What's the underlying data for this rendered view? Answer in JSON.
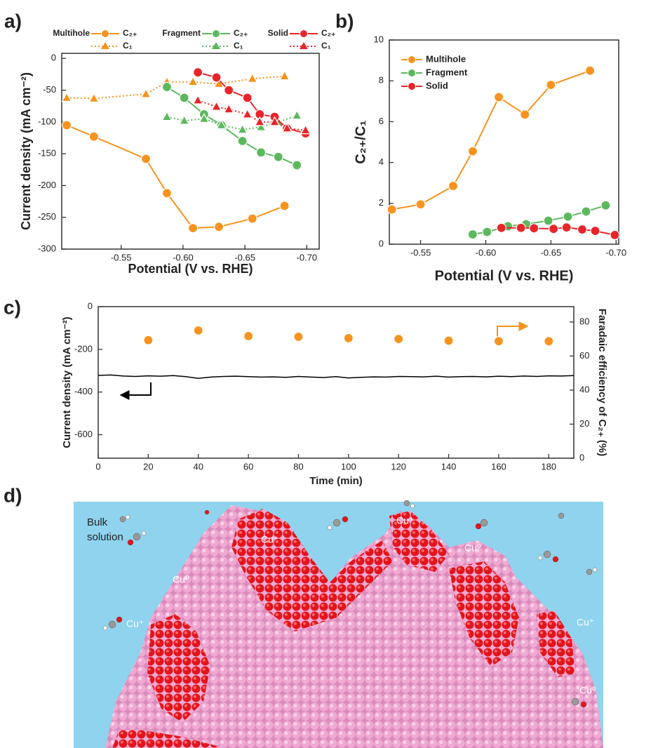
{
  "chart_data": [
    {
      "type": "line",
      "panel_label": "a)",
      "xlabel": "Potential (V vs. RHE)",
      "ylabel": "Current density (mA cm⁻²)",
      "xlim": [
        -0.502,
        -0.71
      ],
      "xticks": [
        -0.55,
        {
          "value": -0.6,
          "label": "-0.60"
        },
        -0.65,
        {
          "value": -0.7,
          "label": "-0.70"
        }
      ],
      "ylim": [
        -300,
        8
      ],
      "yticks": [
        0,
        -50,
        -100,
        -150,
        -200,
        -250,
        -300
      ],
      "groups": [
        {
          "name": "Multihole",
          "color": "#f7931e",
          "x": [
            -0.506,
            -0.528,
            -0.57,
            -0.587,
            -0.608,
            -0.629,
            -0.656,
            -0.682
          ],
          "series": [
            {
              "name": "C₂₊",
              "marker": "circle",
              "values": [
                -105,
                -123,
                -158,
                -212,
                -267,
                -265,
                -252,
                -232
              ]
            },
            {
              "name": "C₁",
              "marker": "triangle",
              "dashed": true,
              "values": [
                -62,
                -63,
                -56,
                -37,
                -37,
                -40,
                -32,
                -28
              ]
            }
          ]
        },
        {
          "name": "Fragment",
          "color": "#5cb85c",
          "x": [
            -0.587,
            -0.601,
            -0.617,
            -0.631,
            -0.648,
            -0.663,
            -0.677,
            -0.692
          ],
          "series": [
            {
              "name": "C₂₊",
              "marker": "circle",
              "values": [
                -45,
                -62,
                -88,
                -105,
                -130,
                -148,
                -155,
                -168
              ]
            },
            {
              "name": "C₁",
              "marker": "triangle",
              "dashed": true,
              "values": [
                -92,
                -98,
                -95,
                -105,
                -112,
                -108,
                -100,
                -90
              ]
            }
          ]
        },
        {
          "name": "Solid",
          "color": "#e8262a",
          "x": [
            -0.612,
            -0.627,
            -0.637,
            -0.652,
            -0.662,
            -0.674,
            -0.684,
            -0.699
          ],
          "series": [
            {
              "name": "C₂₊",
              "marker": "circle",
              "values": [
                -22,
                -30,
                -50,
                -62,
                -88,
                -92,
                -110,
                -118
              ]
            },
            {
              "name": "C₁",
              "marker": "triangle",
              "dashed": true,
              "values": [
                -66,
                -76,
                -80,
                -88,
                -100,
                -100,
                -110,
                -113
              ]
            }
          ]
        }
      ]
    },
    {
      "type": "line",
      "panel_label": "b)",
      "xlabel": "Potential (V vs. RHE)",
      "ylabel": "C₂₊/C₁",
      "xlim": [
        -0.526,
        -0.702
      ],
      "xticks": [
        -0.55,
        {
          "value": -0.6,
          "label": "-0.60"
        },
        -0.65,
        {
          "value": -0.7,
          "label": "-0.70"
        }
      ],
      "ylim": [
        0,
        10
      ],
      "yticks": [
        0,
        2,
        4,
        6,
        8,
        10
      ],
      "series": [
        {
          "name": "Multihole",
          "color": "#f7931e",
          "marker": "circle",
          "x": [
            -0.528,
            -0.55,
            -0.575,
            -0.59,
            -0.61,
            -0.63,
            -0.65,
            -0.68
          ],
          "values": [
            1.7,
            1.95,
            2.85,
            4.55,
            7.2,
            6.35,
            7.8,
            8.5
          ]
        },
        {
          "name": "Fragment",
          "color": "#5cb85c",
          "marker": "circle",
          "x": [
            -0.59,
            -0.601,
            -0.617,
            -0.631,
            -0.648,
            -0.663,
            -0.677,
            -0.692
          ],
          "values": [
            0.48,
            0.6,
            0.88,
            0.98,
            1.15,
            1.35,
            1.6,
            1.9
          ]
        },
        {
          "name": "Solid",
          "color": "#e8262a",
          "marker": "circle",
          "x": [
            -0.612,
            -0.627,
            -0.637,
            -0.652,
            -0.662,
            -0.674,
            -0.684,
            -0.699
          ],
          "values": [
            0.8,
            0.8,
            0.78,
            0.75,
            0.82,
            0.72,
            0.65,
            0.45
          ]
        }
      ]
    },
    {
      "type": "line",
      "panel_label": "c)",
      "xlabel": "Time (min)",
      "ylabel": "Current density (mA cm⁻²)",
      "y2label": "Faradaic efficiency of C₂₊ (%)",
      "xlim": [
        0,
        190
      ],
      "xticks": [
        0,
        20,
        40,
        60,
        80,
        100,
        120,
        140,
        160,
        180
      ],
      "ylim": [
        -710,
        0
      ],
      "yticks": [
        0,
        -200,
        -400,
        -600
      ],
      "y2lim": [
        0,
        89
      ],
      "y2ticks": [
        0,
        20,
        40,
        60,
        80
      ],
      "series": [
        {
          "color": "#000000",
          "x": [
            0,
            5,
            10,
            15,
            20,
            25,
            30,
            35,
            40,
            45,
            50,
            55,
            60,
            65,
            70,
            75,
            80,
            85,
            90,
            95,
            100,
            105,
            110,
            115,
            120,
            125,
            130,
            135,
            140,
            145,
            150,
            155,
            160,
            165,
            170,
            175,
            180,
            185,
            190
          ],
          "values": [
            -322,
            -320,
            -325,
            -327,
            -324,
            -326,
            -323,
            -328,
            -336,
            -330,
            -327,
            -326,
            -328,
            -330,
            -329,
            -331,
            -327,
            -330,
            -332,
            -328,
            -334,
            -331,
            -329,
            -330,
            -327,
            -328,
            -329,
            -326,
            -330,
            -328,
            -327,
            -329,
            -326,
            -328,
            -325,
            -327,
            -324,
            -325,
            -323
          ]
        },
        {
          "axis": "y2",
          "color": "#f7931e",
          "marker": "circle",
          "line": false,
          "x": [
            20,
            40,
            60,
            80,
            100,
            120,
            140,
            160,
            180
          ],
          "values": [
            69.3,
            75,
            71.7,
            71.3,
            70.5,
            70,
            69,
            68.7,
            68.7
          ]
        }
      ]
    }
  ],
  "illustration": {
    "panel_label": "d)",
    "labels": [
      "Bulk",
      "solution",
      "Cu⁺",
      "Cu⁺",
      "Cu⁰",
      "Cu⁰",
      "Cu⁺",
      "Cu⁺",
      "Cu⁰"
    ]
  }
}
